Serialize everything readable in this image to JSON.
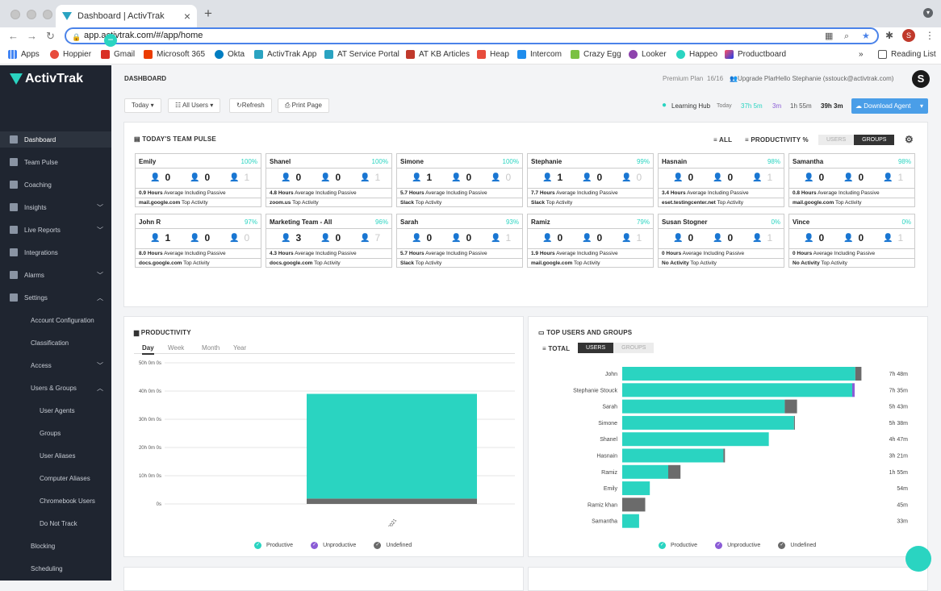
{
  "browser": {
    "tab_title": "Dashboard | ActivTrak",
    "url": "app.activtrak.com/#/app/home",
    "profile_initial": "S",
    "bookmarks": [
      "Apps",
      "Hoppier",
      "Gmail",
      "Microsoft 365",
      "Okta",
      "ActivTrak App",
      "AT Service Portal",
      "AT KB Articles",
      "Heap",
      "Intercom",
      "Crazy Egg",
      "Looker",
      "Happeo",
      "Productboard"
    ],
    "reading_list": "Reading List",
    "more": "»"
  },
  "sidebar": {
    "logo": "ActivTrak",
    "items": [
      {
        "label": "Dashboard",
        "icon": "dashboard-icon",
        "level": 0,
        "active": true
      },
      {
        "label": "Team Pulse",
        "icon": "pulse-icon",
        "level": 0
      },
      {
        "label": "Coaching",
        "icon": "coaching-icon",
        "level": 0
      },
      {
        "label": "Insights",
        "icon": "insights-icon",
        "level": 0,
        "chevron": "down"
      },
      {
        "label": "Live Reports",
        "icon": "reports-icon",
        "level": 0,
        "chevron": "down"
      },
      {
        "label": "Integrations",
        "icon": "integrations-icon",
        "level": 0
      },
      {
        "label": "Alarms",
        "icon": "bell-icon",
        "level": 0,
        "chevron": "down"
      },
      {
        "label": "Settings",
        "icon": "gear-icon",
        "level": 0,
        "chevron": "up"
      },
      {
        "label": "Account Configuration",
        "level": 1
      },
      {
        "label": "Classification",
        "level": 1
      },
      {
        "label": "Access",
        "level": 1,
        "chevron": "down"
      },
      {
        "label": "Users & Groups",
        "level": 1,
        "chevron": "up"
      },
      {
        "label": "User Agents",
        "level": 2
      },
      {
        "label": "Groups",
        "level": 2
      },
      {
        "label": "User Aliases",
        "level": 2
      },
      {
        "label": "Computer Aliases",
        "level": 2
      },
      {
        "label": "Chromebook Users",
        "level": 2
      },
      {
        "label": "Do Not Track",
        "level": 2
      },
      {
        "label": "Blocking",
        "level": 1
      },
      {
        "label": "Scheduling",
        "level": 1
      }
    ]
  },
  "header": {
    "title": "DASHBOARD",
    "plan": "Premium Plan",
    "seats": "16/16",
    "upgrade": "Upgrade Plan",
    "hello": "Hello Stephanie (sstouck@activtrak.com)",
    "avatar": "S"
  },
  "toolbar": {
    "today": "Today",
    "all_users": "All Users",
    "refresh": "Refresh",
    "print": "Print Page",
    "learning_hub": "Learning Hub",
    "today_label": "Today",
    "stat1": "37h 5m",
    "stat2": "3m",
    "stat3": "1h 55m",
    "stat4": "39h 3m",
    "download": "Download Agent"
  },
  "colors": {
    "productive": "#2ad4c1",
    "unproductive": "#8b5cd6",
    "undefined": "#6b6b6b",
    "accent": "#4a9ee8"
  },
  "pulse": {
    "title": "TODAY'S TEAM PULSE",
    "filter_all": "ALL",
    "filter_prod": "PRODUCTIVITY %",
    "seg_users": "USERS",
    "seg_groups": "GROUPS",
    "cards": [
      {
        "name": "Emily",
        "pct": "100%",
        "a": "0",
        "b": "0",
        "c": "1",
        "hours": "0.9 Hours",
        "site": "mail.google.com"
      },
      {
        "name": "Shanel",
        "pct": "100%",
        "a": "0",
        "b": "0",
        "c": "1",
        "hours": "4.8 Hours",
        "site": "zoom.us"
      },
      {
        "name": "Simone",
        "pct": "100%",
        "a": "1",
        "b": "0",
        "c": "0",
        "hours": "5.7 Hours",
        "site": "Slack"
      },
      {
        "name": "Stephanie",
        "pct": "99%",
        "a": "1",
        "b": "0",
        "c": "0",
        "hours": "7.7 Hours",
        "site": "Slack"
      },
      {
        "name": "Hasnain",
        "pct": "98%",
        "a": "0",
        "b": "0",
        "c": "1",
        "hours": "3.4 Hours",
        "site": "eset.testingcenter.net"
      },
      {
        "name": "Samantha",
        "pct": "98%",
        "a": "0",
        "b": "0",
        "c": "1",
        "hours": "0.8 Hours",
        "site": "mail.google.com"
      },
      {
        "name": "John R",
        "pct": "97%",
        "a": "1",
        "b": "0",
        "c": "0",
        "hours": "8.0 Hours",
        "site": "docs.google.com"
      },
      {
        "name": "Marketing Team - All",
        "pct": "96%",
        "a": "3",
        "b": "0",
        "c": "7",
        "hours": "4.3 Hours",
        "site": "docs.google.com"
      },
      {
        "name": "Sarah",
        "pct": "93%",
        "a": "0",
        "b": "0",
        "c": "1",
        "hours": "5.7 Hours",
        "site": "Slack"
      },
      {
        "name": "Ramiz",
        "pct": "79%",
        "a": "0",
        "b": "0",
        "c": "1",
        "hours": "1.9 Hours",
        "site": "mail.google.com"
      },
      {
        "name": "Susan Stogner",
        "pct": "0%",
        "a": "0",
        "b": "0",
        "c": "1",
        "hours": "0 Hours",
        "site": "No Activity"
      },
      {
        "name": "Vince",
        "pct": "0%",
        "a": "0",
        "b": "0",
        "c": "1",
        "hours": "0 Hours",
        "site": "No Activity"
      }
    ],
    "avg_label": "Average Including Passive",
    "top_label": "Top Activity"
  },
  "productivity": {
    "title": "PRODUCTIVITY",
    "tabs": [
      "Day",
      "Week",
      "Month",
      "Year"
    ],
    "legend": [
      "Productive",
      "Unproductive",
      "Undefined"
    ]
  },
  "top_users": {
    "title": "TOP USERS AND GROUPS",
    "total": "TOTAL",
    "seg_users": "USERS",
    "seg_groups": "GROUPS",
    "legend": [
      "Productive",
      "Unproductive",
      "Undefined"
    ]
  },
  "chart_data": [
    {
      "type": "bar",
      "categories": [
        "07/09/2021"
      ],
      "series": [
        {
          "name": "Productive",
          "values": [
            37.1
          ]
        },
        {
          "name": "Unproductive",
          "values": [
            0
          ]
        },
        {
          "name": "Undefined",
          "values": [
            1.9
          ]
        }
      ],
      "yticks": [
        "50h 0m 0s",
        "40h 0m 0s",
        "30h 0m 0s",
        "20h 0m 0s",
        "10h 0m 0s",
        "0s"
      ],
      "ylim": [
        0,
        50
      ],
      "stacked": true
    },
    {
      "type": "bar",
      "orientation": "horizontal",
      "categories": [
        "John",
        "Stephanie Stouck",
        "Sarah",
        "Simone",
        "Shanel",
        "Hasnain",
        "Ramiz",
        "Emily",
        "Ramiz khan",
        "Samantha"
      ],
      "labels": [
        "7h 48m",
        "7h 35m",
        "5h 43m",
        "5h 38m",
        "4h 47m",
        "3h 21m",
        "1h 55m",
        "54m",
        "45m",
        "33m"
      ],
      "series": [
        {
          "name": "Productive",
          "values": [
            7.6,
            7.5,
            5.3,
            5.6,
            4.78,
            3.3,
            1.5,
            0.9,
            0,
            0.55
          ]
        },
        {
          "name": "Unproductive",
          "values": [
            0,
            0.08,
            0,
            0,
            0,
            0,
            0,
            0,
            0,
            0
          ]
        },
        {
          "name": "Undefined",
          "values": [
            0.2,
            0,
            0.4,
            0.03,
            0,
            0.05,
            0.4,
            0,
            0.75,
            0
          ]
        }
      ],
      "xlim": [
        0,
        8
      ]
    }
  ]
}
